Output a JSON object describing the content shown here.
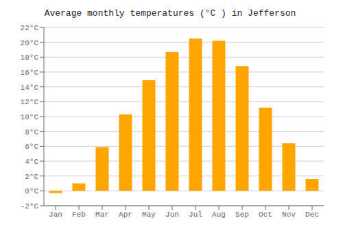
{
  "chart_data": {
    "type": "bar",
    "title": "Average monthly temperatures (°C ) in Jefferson",
    "categories": [
      "Jan",
      "Feb",
      "Mar",
      "Apr",
      "May",
      "Jun",
      "Jul",
      "Aug",
      "Sep",
      "Oct",
      "Nov",
      "Dec"
    ],
    "values": [
      -0.3,
      1.0,
      5.9,
      10.3,
      14.9,
      18.7,
      20.5,
      20.2,
      16.8,
      11.2,
      6.4,
      1.6
    ],
    "color": "#FFA500",
    "ylim": [
      -2,
      22
    ],
    "yticks": [
      {
        "value": -2,
        "label": "-2°C"
      },
      {
        "value": 0,
        "label": "0°C"
      },
      {
        "value": 2,
        "label": "2°C"
      },
      {
        "value": 4,
        "label": "4°C"
      },
      {
        "value": 6,
        "label": "6°C"
      },
      {
        "value": 8,
        "label": "8°C"
      },
      {
        "value": 10,
        "label": "10°C"
      },
      {
        "value": 12,
        "label": "12°C"
      },
      {
        "value": 14,
        "label": "14°C"
      },
      {
        "value": 16,
        "label": "16°C"
      },
      {
        "value": 18,
        "label": "18°C"
      },
      {
        "value": 20,
        "label": "20°C"
      },
      {
        "value": 22,
        "label": "22°C"
      }
    ],
    "grid": true
  }
}
